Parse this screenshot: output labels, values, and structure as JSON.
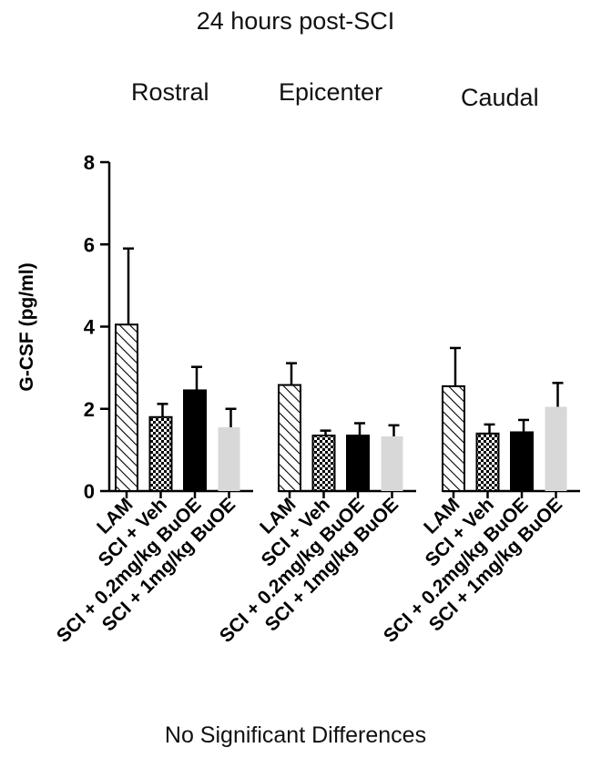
{
  "chart_data": {
    "type": "bar",
    "title": "24 hours post-SCI",
    "ylabel": "G-CSF (pg/ml)",
    "xlabel": "",
    "ylim": [
      0,
      8
    ],
    "yticks": [
      "0",
      "2",
      "4",
      "6",
      "8"
    ],
    "groups": [
      "Rostral",
      "Epicenter",
      "Caudal"
    ],
    "categories": [
      "LAM",
      "SCI + Veh",
      "SCI + 0.2mg/kg BuOE",
      "SCI + 1mg/kg BuOE"
    ],
    "series": [
      {
        "group": "Rostral",
        "values": [
          4.05,
          1.8,
          2.45,
          1.55
        ],
        "errors": [
          1.85,
          0.32,
          0.57,
          0.45
        ]
      },
      {
        "group": "Epicenter",
        "values": [
          2.58,
          1.35,
          1.35,
          1.33
        ],
        "errors": [
          0.53,
          0.12,
          0.3,
          0.27
        ]
      },
      {
        "group": "Caudal",
        "values": [
          2.55,
          1.4,
          1.43,
          2.05
        ],
        "errors": [
          0.93,
          0.22,
          0.3,
          0.58
        ]
      }
    ],
    "bar_fills": [
      "diagonal-hatch",
      "checkerboard",
      "black",
      "light-gray"
    ],
    "grid": false,
    "legend": "none",
    "annotation": "No Significant Differences"
  }
}
